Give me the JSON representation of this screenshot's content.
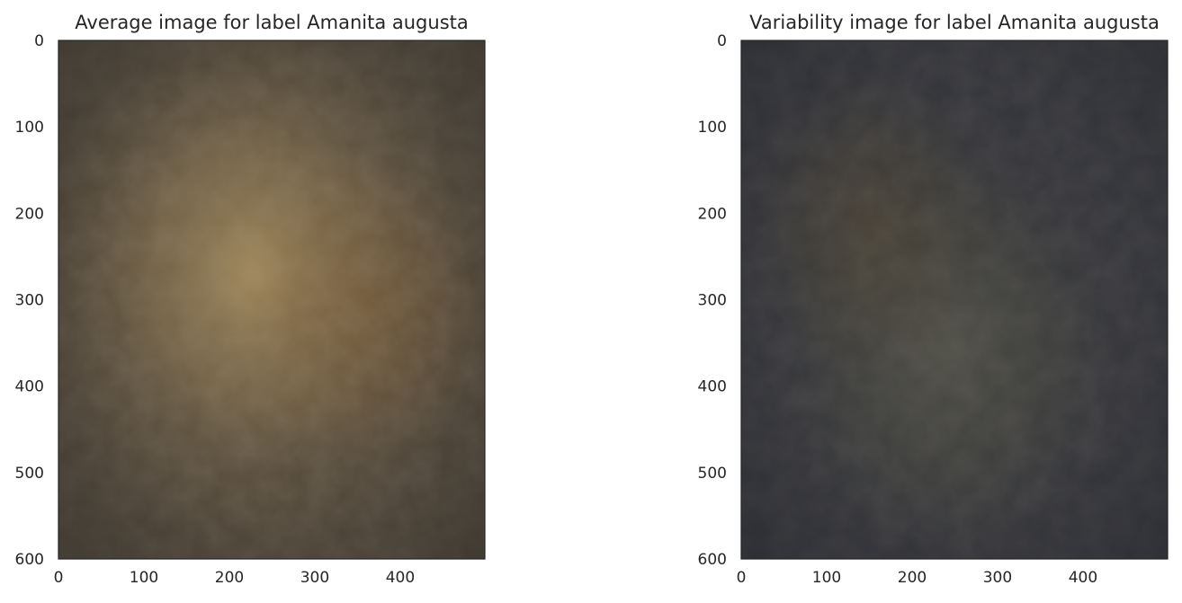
{
  "chart_data": [
    {
      "type": "heatmap",
      "title": "Average image for label Amanita augusta",
      "xlabel": "",
      "ylabel": "",
      "xlim": [
        0,
        499
      ],
      "ylim": [
        600,
        0
      ],
      "xticks": [
        0,
        100,
        200,
        300,
        400
      ],
      "yticks": [
        0,
        100,
        200,
        300,
        400,
        500,
        600
      ],
      "grid": false,
      "colors": {
        "background": "#4e4538",
        "glow": "#b09460",
        "warm_shadow": "#6e5030",
        "dark_corner": "#2e2a26"
      }
    },
    {
      "type": "heatmap",
      "title": "Variability image for label Amanita augusta",
      "xlabel": "",
      "ylabel": "",
      "xlim": [
        0,
        499
      ],
      "ylim": [
        600,
        0
      ],
      "xticks": [
        0,
        100,
        200,
        300,
        400
      ],
      "yticks": [
        0,
        100,
        200,
        300,
        400,
        500,
        600
      ],
      "grid": false,
      "colors": {
        "background": "#33343a",
        "glow": "#5b5a4c",
        "warm_shadow": "#4e4532",
        "dark_corner": "#26272c"
      }
    }
  ]
}
